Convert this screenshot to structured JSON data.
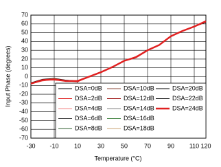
{
  "chart_data": {
    "type": "line",
    "xlabel": "Temperature (°C)",
    "ylabel": "Input Phase (degrees)",
    "x": [
      -30,
      -20,
      -10,
      0,
      10,
      20,
      30,
      40,
      50,
      60,
      70,
      80,
      90,
      100,
      110,
      120
    ],
    "xlim": [
      -30,
      120
    ],
    "xticks": [
      -30,
      -10,
      10,
      30,
      50,
      70,
      90,
      110,
      120
    ],
    "ylim": [
      -70,
      70
    ],
    "yticks": [
      -70,
      -60,
      -50,
      -40,
      -30,
      -20,
      -10,
      0,
      10,
      20,
      30,
      40,
      50,
      60,
      70
    ],
    "grid": true,
    "series": [
      {
        "name": "DSA=0dB",
        "color": "#000000",
        "values": [
          -7,
          -3,
          -2,
          -4,
          -5,
          0,
          5,
          11,
          18,
          22,
          30,
          36,
          46,
          52,
          57,
          62
        ]
      },
      {
        "name": "DSA=2dB",
        "color": "#e02020",
        "values": [
          -8,
          -4,
          -4,
          -5,
          -6,
          0,
          5,
          11,
          18,
          22,
          30,
          36,
          46,
          52,
          57,
          62
        ]
      },
      {
        "name": "DSA=4dB",
        "color": "#f08080",
        "values": [
          -8,
          -5,
          -3,
          -5,
          -5,
          0,
          5,
          11,
          18,
          23,
          30,
          36,
          46,
          52,
          57,
          62
        ]
      },
      {
        "name": "DSA=6dB",
        "color": "#404040",
        "values": [
          -7,
          -4,
          -3,
          -4,
          -5,
          0,
          5,
          11,
          18,
          22,
          30,
          36,
          46,
          52,
          57,
          62
        ]
      },
      {
        "name": "DSA=8dB",
        "color": "#2e5e2e",
        "values": [
          -8,
          -4,
          -2,
          -5,
          -5,
          0,
          5,
          11,
          18,
          22,
          30,
          36,
          46,
          52,
          57,
          62
        ]
      },
      {
        "name": "DSA=10dB",
        "color": "#8b4a3a",
        "values": [
          -8,
          -4,
          -3,
          -5,
          -5,
          0,
          5,
          11,
          18,
          22,
          30,
          36,
          46,
          52,
          57,
          62
        ]
      },
      {
        "name": "DSA=12dB",
        "color": "#a01818",
        "values": [
          -8,
          -4,
          -3,
          -5,
          -5,
          0,
          5,
          11,
          18,
          22,
          30,
          36,
          46,
          52,
          57,
          62
        ]
      },
      {
        "name": "DSA=14dB",
        "color": "#808080",
        "values": [
          -8,
          -4,
          -3,
          -5,
          -5,
          0,
          5,
          11,
          18,
          22,
          30,
          36,
          46,
          52,
          57,
          62
        ]
      },
      {
        "name": "DSA=16dB",
        "color": "#4a8a4a",
        "values": [
          -8,
          -4,
          -3,
          -5,
          -5,
          0,
          5,
          11,
          18,
          22,
          30,
          36,
          46,
          52,
          57,
          62
        ]
      },
      {
        "name": "DSA=18dB",
        "color": "#c8a070",
        "values": [
          -8,
          -4,
          -3,
          -5,
          -5,
          0,
          5,
          11,
          18,
          22,
          30,
          36,
          46,
          52,
          57,
          62
        ]
      },
      {
        "name": "DSA=20dB",
        "color": "#000000",
        "values": [
          -8,
          -4,
          -3,
          -5,
          -5,
          0,
          5,
          11,
          18,
          22,
          30,
          36,
          46,
          52,
          57,
          62
        ]
      },
      {
        "name": "DSA=22dB",
        "color": "#202020",
        "values": [
          -8,
          -4,
          -3,
          -5,
          -5,
          0,
          5,
          11,
          18,
          22,
          30,
          36,
          46,
          52,
          57,
          62
        ]
      },
      {
        "name": "DSA=24dB",
        "color": "#e02020",
        "linewidth": 2.5,
        "values": [
          -8,
          -4,
          -3,
          -5,
          -5,
          0,
          5,
          11,
          18,
          22,
          30,
          36,
          46,
          52,
          57,
          63
        ]
      }
    ]
  }
}
